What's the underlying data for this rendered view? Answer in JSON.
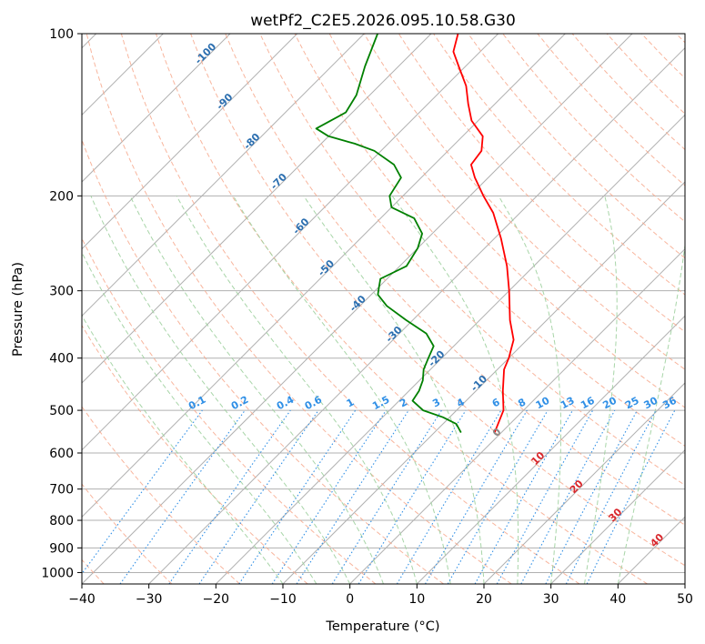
{
  "chart_data": {
    "type": "line",
    "title": "wetPf2_C2E5.2026.095.10.58.G30",
    "xlabel": "Temperature (°C)",
    "ylabel": "Pressure (hPa)",
    "xlim": [
      -40,
      50
    ],
    "ylim": [
      1050,
      100
    ],
    "y_scale": "log",
    "grid": true,
    "x_ticks": [
      "−40",
      "−30",
      "−20",
      "−10",
      "0",
      "10",
      "20",
      "30",
      "40",
      "50"
    ],
    "x_tick_values": [
      -40,
      -30,
      -20,
      -10,
      0,
      10,
      20,
      30,
      40,
      50
    ],
    "y_ticks": [
      "100",
      "200",
      "300",
      "400",
      "500",
      "600",
      "700",
      "800",
      "900",
      "1000"
    ],
    "y_tick_values": [
      100,
      200,
      300,
      400,
      500,
      600,
      700,
      800,
      900,
      1000
    ],
    "series": [
      {
        "kind": "temperature",
        "color": "#ff0000",
        "points": [
          [
            550,
            -1.0
          ],
          [
            500,
            -3.0
          ],
          [
            460,
            -6.0
          ],
          [
            420,
            -9.0
          ],
          [
            400,
            -10.0
          ],
          [
            370,
            -12.0
          ],
          [
            340,
            -15.5
          ],
          [
            300,
            -20.0
          ],
          [
            270,
            -24.0
          ],
          [
            240,
            -29.0
          ],
          [
            215,
            -34.0
          ],
          [
            200,
            -38.0
          ],
          [
            185,
            -42.0
          ],
          [
            175,
            -44.5
          ],
          [
            165,
            -45.0
          ],
          [
            155,
            -47.0
          ],
          [
            145,
            -51.0
          ],
          [
            135,
            -54.0
          ],
          [
            125,
            -57.0
          ],
          [
            115,
            -61.0
          ],
          [
            108,
            -64.0
          ],
          [
            100,
            -66.0
          ]
        ]
      },
      {
        "kind": "dewpoint",
        "color": "#008000",
        "points": [
          [
            550,
            -6.0
          ],
          [
            530,
            -8.0
          ],
          [
            515,
            -11.0
          ],
          [
            500,
            -15.0
          ],
          [
            480,
            -18.0
          ],
          [
            460,
            -18.5
          ],
          [
            440,
            -19.5
          ],
          [
            420,
            -21.0
          ],
          [
            400,
            -22.0
          ],
          [
            380,
            -23.0
          ],
          [
            360,
            -26.0
          ],
          [
            340,
            -31.0
          ],
          [
            320,
            -36.0
          ],
          [
            305,
            -39.0
          ],
          [
            295,
            -40.0
          ],
          [
            285,
            -41.0
          ],
          [
            270,
            -39.0
          ],
          [
            250,
            -40.0
          ],
          [
            235,
            -41.5
          ],
          [
            220,
            -45.0
          ],
          [
            210,
            -50.0
          ],
          [
            200,
            -52.0
          ],
          [
            185,
            -53.0
          ],
          [
            175,
            -56.0
          ],
          [
            165,
            -61.0
          ],
          [
            160,
            -65.0
          ],
          [
            155,
            -70.0
          ],
          [
            150,
            -73.0
          ],
          [
            145,
            -72.0
          ],
          [
            140,
            -71.0
          ],
          [
            130,
            -72.0
          ],
          [
            115,
            -75.0
          ],
          [
            100,
            -78.0
          ]
        ]
      }
    ],
    "dry_adiabat_labels": [
      {
        "text": "-100",
        "theta": -100
      },
      {
        "text": "-90",
        "theta": -90
      },
      {
        "text": "-80",
        "theta": -80
      },
      {
        "text": "-70",
        "theta": -70
      },
      {
        "text": "-60",
        "theta": -60
      },
      {
        "text": "-50",
        "theta": -50
      },
      {
        "text": "-40",
        "theta": -40
      },
      {
        "text": "-30",
        "theta": -30
      },
      {
        "text": "-20",
        "theta": -20
      },
      {
        "text": "-10",
        "theta": -10
      }
    ],
    "zero_isotherm_label": "0",
    "temperature_labels": [
      {
        "text": "10",
        "t": 10
      },
      {
        "text": "20",
        "t": 20
      },
      {
        "text": "30",
        "t": 30
      },
      {
        "text": "40",
        "t": 40
      }
    ],
    "mixing_ratio_labels": [
      "0.1",
      "0.2",
      "0.4",
      "0.6",
      "1",
      "1.5",
      "2",
      "3",
      "4",
      "6",
      "8",
      "10",
      "13",
      "16",
      "20",
      "25",
      "30",
      "36"
    ],
    "mixing_ratio_values": [
      0.1,
      0.2,
      0.4,
      0.6,
      1,
      1.5,
      2,
      3,
      4,
      6,
      8,
      10,
      13,
      16,
      20,
      25,
      30,
      36
    ],
    "colors": {
      "isotherm": "#b0b0b0",
      "isobar": "#b0b0b0",
      "dry_adiabat": "#f7a88c",
      "moist_adiabat": "#9fd09f",
      "mixing_ratio": "#2f8fe6",
      "frame": "#000000"
    }
  }
}
